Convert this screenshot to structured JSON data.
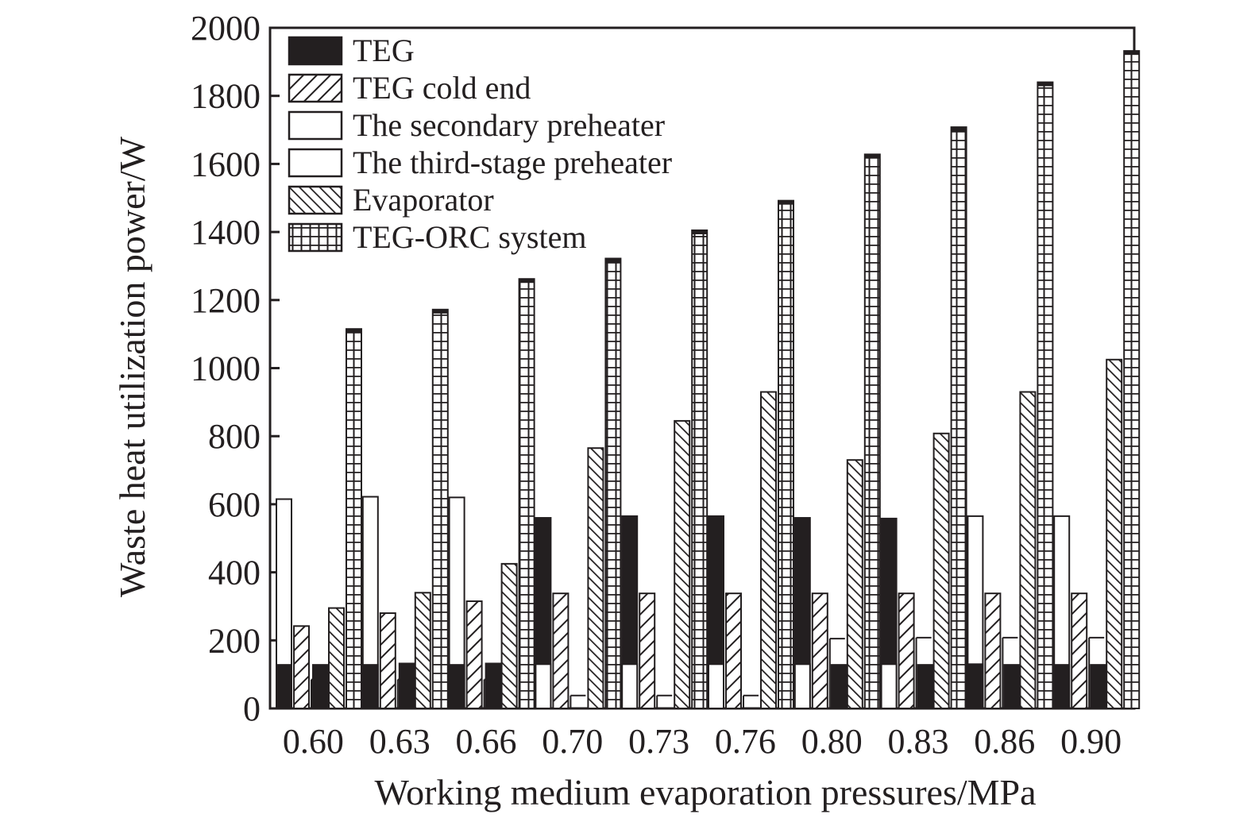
{
  "chart_data": {
    "type": "bar",
    "xlabel": "Working medium evaporation pressures/MPa",
    "ylabel": "Waste heat utilization power/W",
    "ylim": [
      0,
      2000
    ],
    "yticks": [
      0,
      200,
      400,
      600,
      800,
      1000,
      1200,
      1400,
      1600,
      1800,
      2000
    ],
    "categories": [
      "0.60",
      "0.63",
      "0.66",
      "0.70",
      "0.73",
      "0.76",
      "0.80",
      "0.83",
      "0.86",
      "0.90"
    ],
    "legend_position": "top-left",
    "grid": false,
    "series": [
      {
        "name": "TEG",
        "pattern": "solid",
        "note_values": "first-bar inner black portion and separate short black bar per category",
        "values": [
          128,
          128,
          128,
          560,
          565,
          565,
          560,
          558,
          130,
          128
        ]
      },
      {
        "name": "TEG cold end",
        "pattern": "backslash-hatch",
        "values": [
          242,
          280,
          315,
          338,
          338,
          338,
          338,
          338,
          338,
          338
        ]
      },
      {
        "name": "The secondary preheater",
        "pattern": "white",
        "values": [
          615,
          622,
          620,
          130,
          130,
          130,
          130,
          130,
          565,
          565
        ]
      },
      {
        "name": "The third-stage preheater",
        "pattern": "white",
        "values": [
          85,
          85,
          85,
          38,
          38,
          38,
          205,
          208,
          208,
          208
        ]
      },
      {
        "name": "Evaporator",
        "pattern": "forward-hatch",
        "values": [
          295,
          340,
          425,
          765,
          845,
          930,
          730,
          808,
          930,
          1025
        ]
      },
      {
        "name": "TEG-ORC system",
        "pattern": "grid",
        "values": [
          1115,
          1172,
          1262,
          1322,
          1405,
          1492,
          1628,
          1708,
          1840,
          1932
        ]
      }
    ],
    "secondary_teg_bar": [
      128,
      132,
      132,
      0,
      0,
      0,
      128,
      128,
      128,
      128
    ],
    "colors": {
      "ink": "#231f20",
      "background": "#ffffff"
    }
  }
}
